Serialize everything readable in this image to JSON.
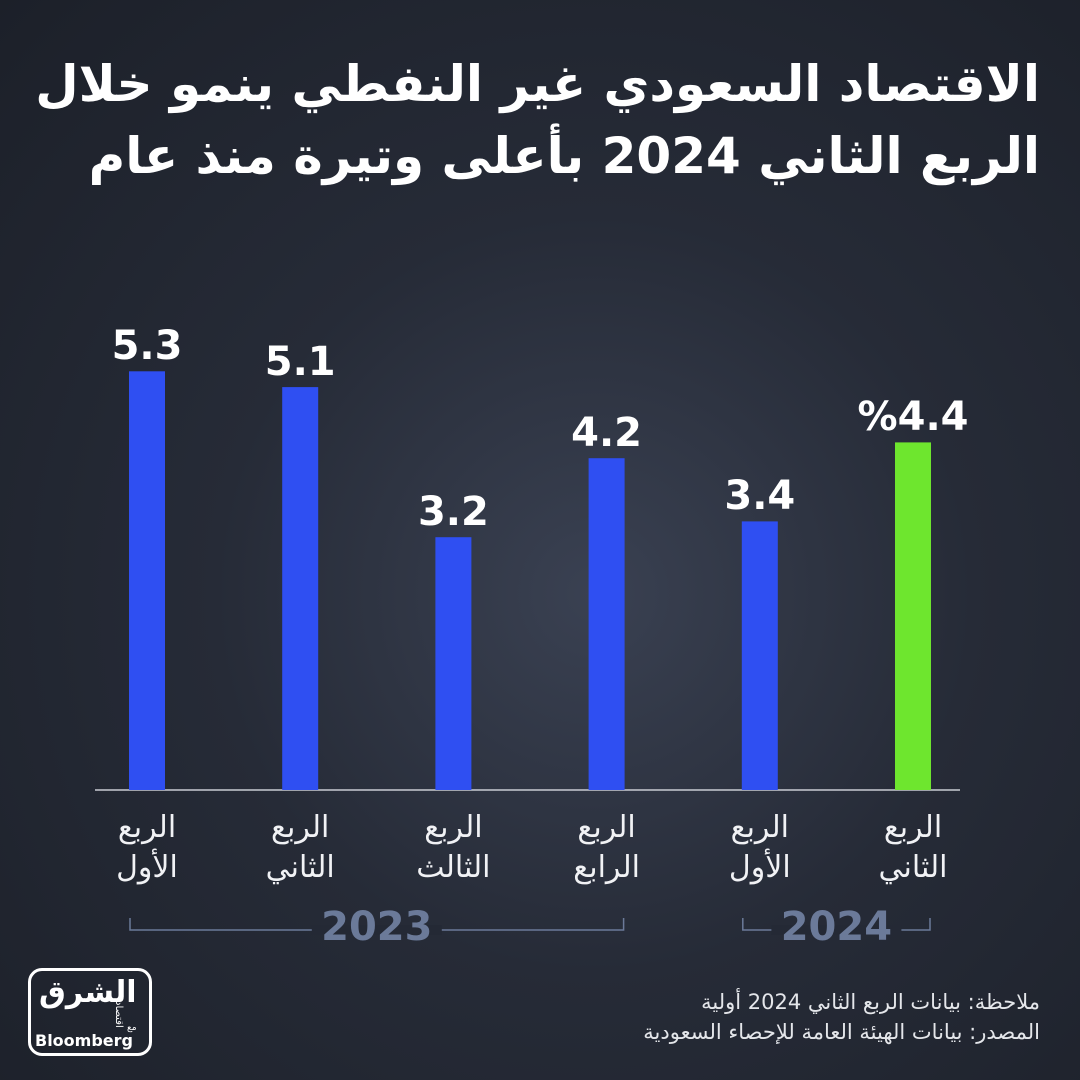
{
  "chart_data": {
    "type": "bar",
    "title": "الاقتصاد السعودي غير النفطي ينمو خلال\nالربع الثاني 2024 بأعلى وتيرة منذ عام",
    "groups": [
      {
        "name": "2023",
        "categories": [
          "الربع\nالأول",
          "الربع\nالثاني",
          "الربع\nالثالث",
          "الربع\nالرابع"
        ],
        "values": [
          5.3,
          5.1,
          3.2,
          4.2
        ],
        "colors": [
          "#2f4ff2",
          "#2f4ff2",
          "#2f4ff2",
          "#2f4ff2"
        ]
      },
      {
        "name": "2024",
        "categories": [
          "الربع\nالأول",
          "الربع\nالثاني"
        ],
        "values": [
          3.4,
          4.4
        ],
        "value_labels": [
          "3.4",
          "%4.4"
        ],
        "colors": [
          "#2f4ff2",
          "#6ee62e"
        ]
      }
    ],
    "notes": [
      "ملاحظة: بيانات الربع الثاني 2024 أولية",
      "المصدر: بيانات الهيئة العامة للإحصاء السعودية"
    ],
    "logo": {
      "name": "الشرق",
      "sub": "اقتصاد",
      "with": "مع",
      "partner": "Bloomberg"
    }
  }
}
